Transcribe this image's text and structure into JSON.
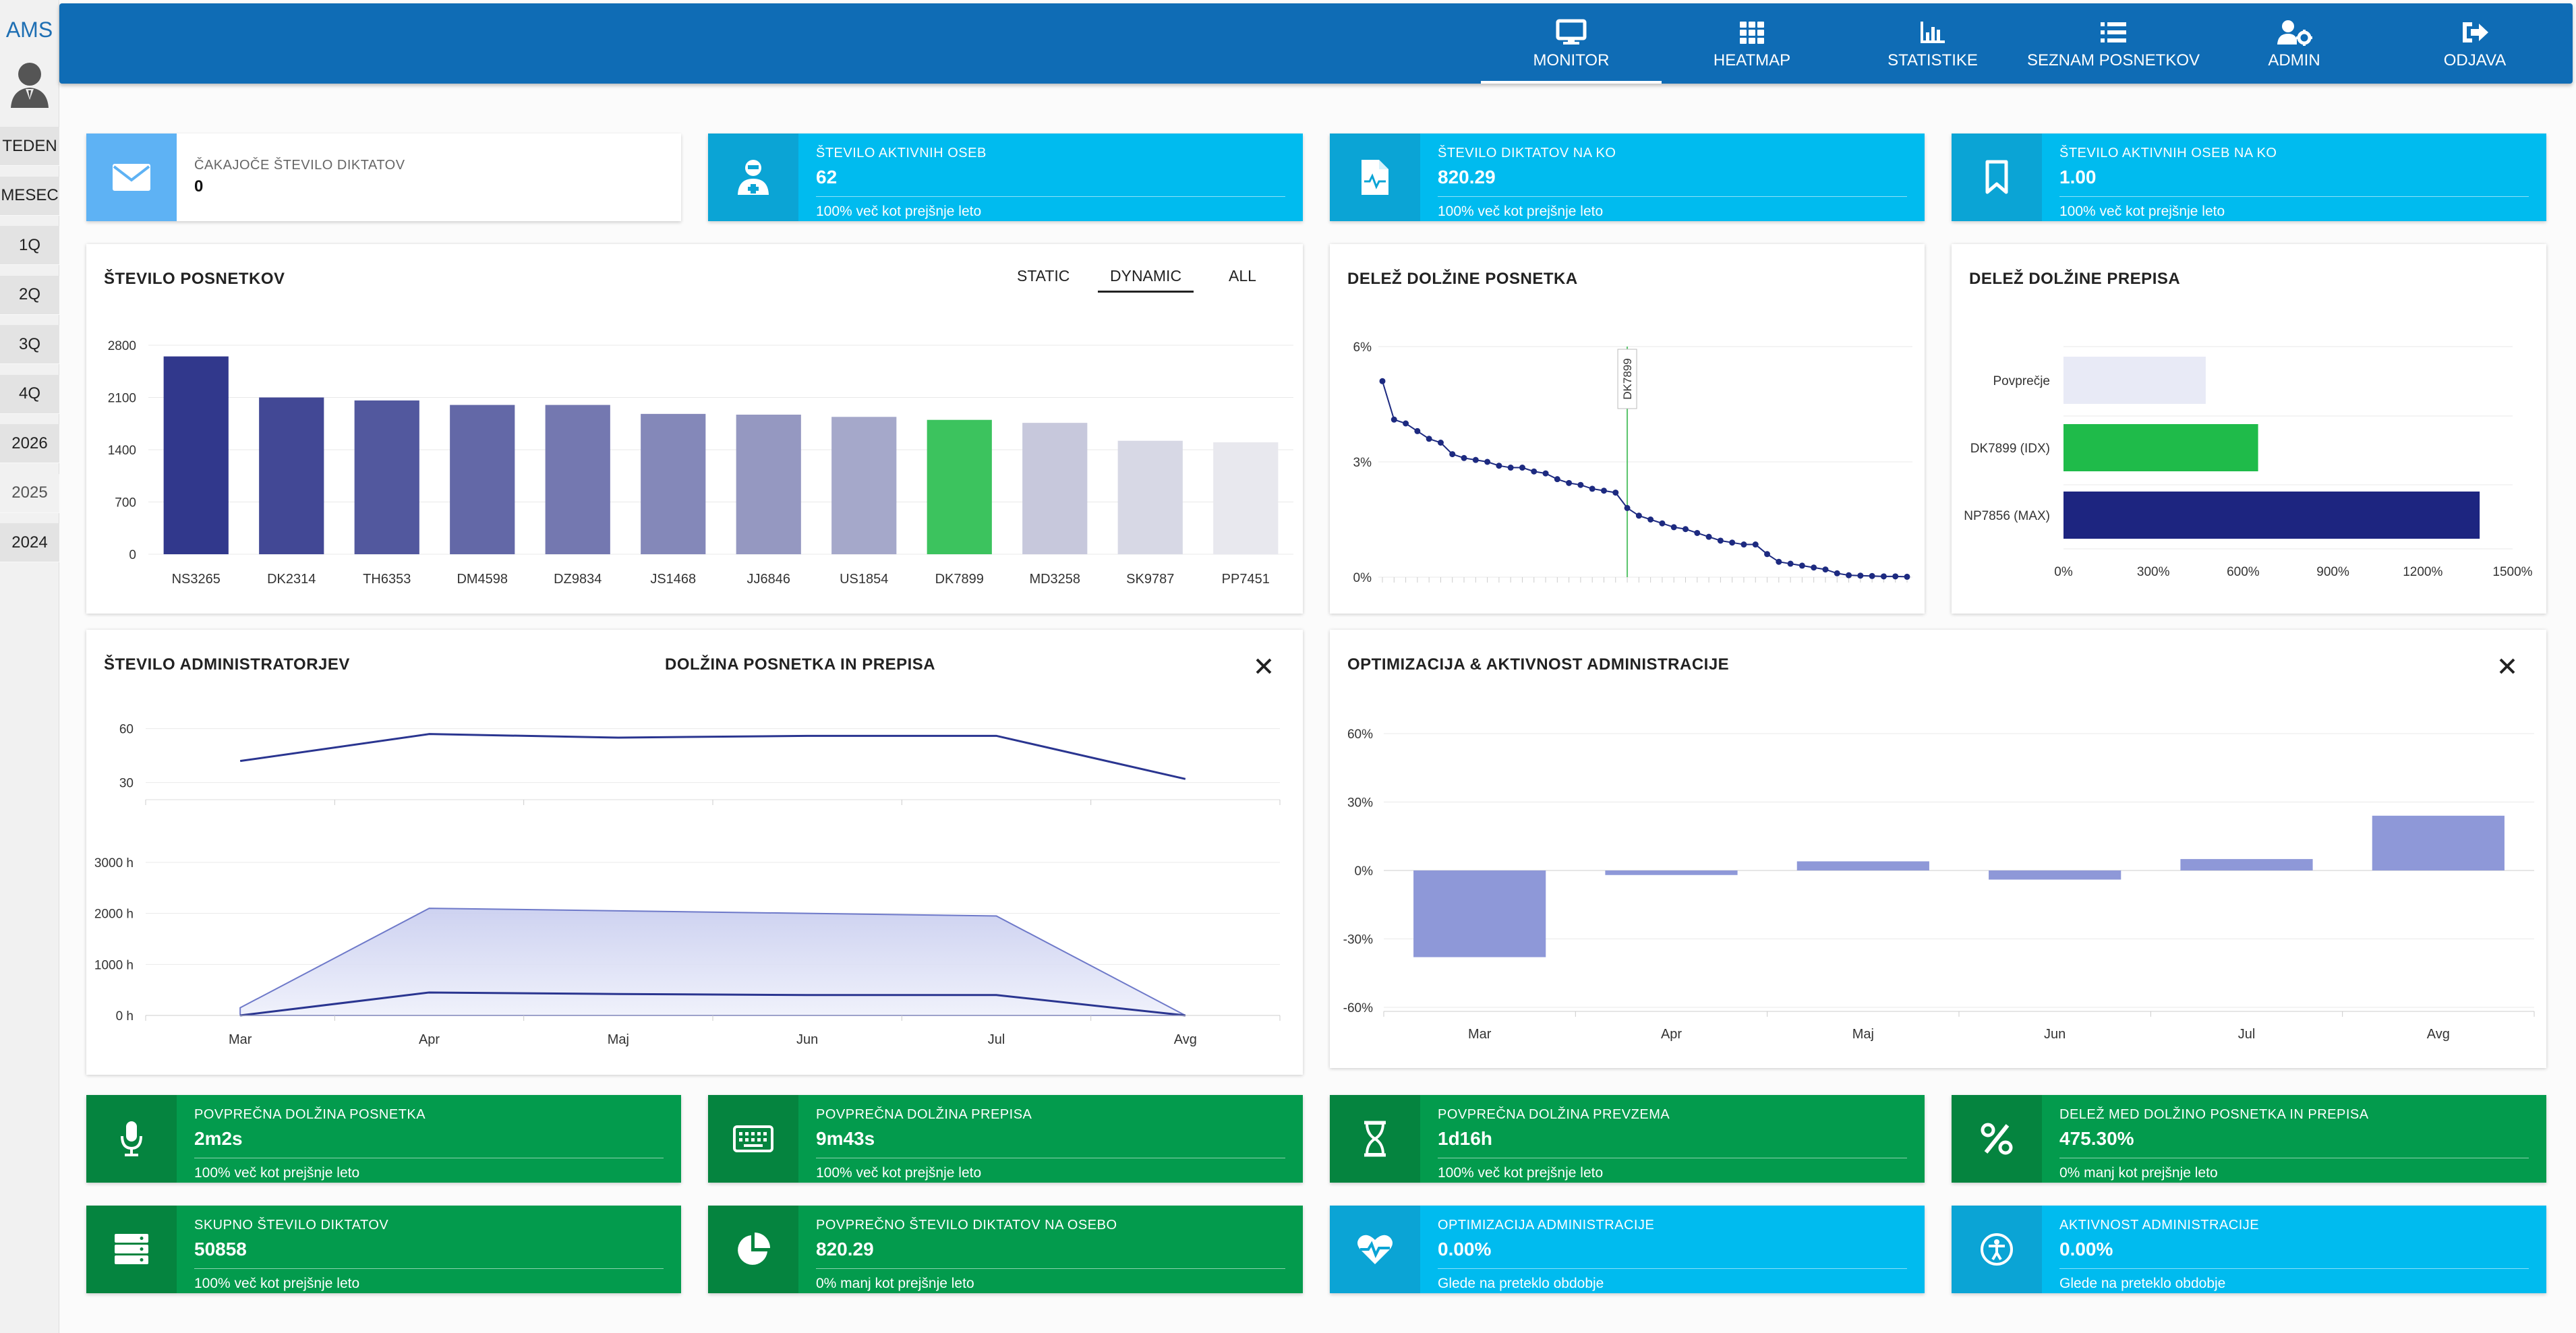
{
  "sidebar": {
    "brand": "AMS",
    "items": [
      "TEDEN",
      "MESEC",
      "1Q",
      "2Q",
      "3Q",
      "4Q",
      "2026",
      "2025",
      "2024"
    ],
    "active_item": "2025"
  },
  "nav": [
    {
      "label": "MONITOR",
      "icon": "monitor-icon"
    },
    {
      "label": "HEATMAP",
      "icon": "grid-icon"
    },
    {
      "label": "STATISTIKE",
      "icon": "bar-chart-icon"
    },
    {
      "label": "SEZNAM POSNETKOV",
      "icon": "list-icon"
    },
    {
      "label": "ADMIN",
      "icon": "users-cog-icon"
    },
    {
      "label": "ODJAVA",
      "icon": "logout-icon"
    }
  ],
  "top_cards": [
    {
      "title": "ČAKAJOČE ŠTEVILO DIKTATOV",
      "value": "0",
      "sub": "",
      "icon": "envelope-icon"
    },
    {
      "title": "ŠTEVILO AKTIVNIH OSEB",
      "value": "62",
      "sub": "100% več kot prejšnje leto",
      "icon": "user-md-icon"
    },
    {
      "title": "ŠTEVILO DIKTATOV NA KO",
      "value": "820.29",
      "sub": "100% več kot prejšnje leto",
      "icon": "file-medical-icon"
    },
    {
      "title": "ŠTEVILO AKTIVNIH OSEB NA KO",
      "value": "1.00",
      "sub": "100% več kot prejšnje leto",
      "icon": "bookmark-icon"
    }
  ],
  "bottom_cards_row1": [
    {
      "title": "POVPREČNA DOLŽINA POSNETKA",
      "value": "2m2s",
      "sub": "100% več kot prejšnje leto",
      "icon": "microphone-icon"
    },
    {
      "title": "POVPREČNA DOLŽINA PREPISA",
      "value": "9m43s",
      "sub": "100% več kot prejšnje leto",
      "icon": "keyboard-icon"
    },
    {
      "title": "POVPREČNA DOLŽINA PREVZEMA",
      "value": "1d16h",
      "sub": "100% več kot prejšnje leto",
      "icon": "hourglass-icon"
    },
    {
      "title": "DELEŽ MED DOLŽINO POSNETKA IN PREPISA",
      "value": "475.30%",
      "sub": "0% manj kot prejšnje leto",
      "icon": "percent-icon"
    }
  ],
  "bottom_cards_row2": [
    {
      "title": "SKUPNO ŠTEVILO DIKTATOV",
      "value": "50858",
      "sub": "100% več kot prejšnje leto",
      "icon": "server-icon"
    },
    {
      "title": "POVPREČNO ŠTEVILO DIKTATOV NA OSEBO",
      "value": "820.29",
      "sub": "0% manj kot prejšnje leto",
      "icon": "pie-chart-icon"
    },
    {
      "title": "OPTIMIZACIJA ADMINISTRACIJE",
      "value": "0.00%",
      "sub": "Glede na preteklo obdobje",
      "icon": "heartbeat-icon"
    },
    {
      "title": "AKTIVNOST ADMINISTRACIJE",
      "value": "0.00%",
      "sub": "Glede na preteklo obdobje",
      "icon": "accessibility-icon"
    }
  ],
  "panels": {
    "recordings": {
      "title": "ŠTEVILO POSNETKOV",
      "toggles": [
        "STATIC",
        "DYNAMIC",
        "ALL"
      ],
      "active_toggle": "DYNAMIC"
    },
    "recording_share": {
      "title": "DELEŽ DOLŽINE POSNETKA"
    },
    "transcript_share": {
      "title": "DELEŽ DOLŽINE PREPISA"
    },
    "admins": {
      "title": "ŠTEVILO ADMINISTRATORJEV",
      "subtitle": "DOLŽINA POSNETKA IN PREPISA"
    },
    "optimization": {
      "title": "OPTIMIZACIJA & AKTIVNOST ADMINISTRACIJE"
    }
  },
  "colors": {
    "primary": "#0f6cb5",
    "cyan": "#00bbef",
    "green": "#039b4d",
    "highlight": "#3cc35e",
    "navy": "#1d2a80",
    "lavender": "#8e98d8"
  },
  "chart_data": [
    {
      "id": "recordings",
      "type": "bar",
      "categories": [
        "NS3265",
        "DK2314",
        "TH6353",
        "DM4598",
        "DZ9834",
        "JS1468",
        "JJ6846",
        "US1854",
        "DK7899",
        "MD3258",
        "SK9787",
        "PP7451"
      ],
      "values": [
        2650,
        2100,
        2060,
        2000,
        2000,
        1880,
        1870,
        1840,
        1800,
        1760,
        1520,
        1500
      ],
      "highlight": "DK7899",
      "yticks": [
        "2800",
        "2100",
        "1400",
        "700",
        "0"
      ],
      "ylim": [
        0,
        2800
      ]
    },
    {
      "id": "recording_share",
      "type": "line",
      "values": [
        5.1,
        4.1,
        4.0,
        3.8,
        3.6,
        3.5,
        3.2,
        3.1,
        3.05,
        3.0,
        2.9,
        2.85,
        2.85,
        2.75,
        2.7,
        2.55,
        2.45,
        2.4,
        2.3,
        2.25,
        2.2,
        1.8,
        1.6,
        1.5,
        1.4,
        1.3,
        1.25,
        1.15,
        1.05,
        0.95,
        0.9,
        0.85,
        0.85,
        0.6,
        0.4,
        0.35,
        0.3,
        0.25,
        0.2,
        0.1,
        0.05,
        0.04,
        0.03,
        0.02,
        0.02,
        0.01
      ],
      "marker_index": 21,
      "marker_label": "DK7899",
      "yticks": [
        "6%",
        "3%",
        "0%"
      ],
      "ylim": [
        0,
        6
      ]
    },
    {
      "id": "transcript_share",
      "type": "bar",
      "orientation": "horizontal",
      "categories": [
        "Povprečje",
        "DK7899 (IDX)",
        "NP7856 (MAX)"
      ],
      "values": [
        475,
        650,
        1390
      ],
      "xticks": [
        "0%",
        "300%",
        "600%",
        "900%",
        "1200%",
        "1500%"
      ],
      "xlim": [
        0,
        1500
      ]
    },
    {
      "id": "admins",
      "type": "line",
      "categories": [
        "Mar",
        "Apr",
        "Maj",
        "Jun",
        "Jul",
        "Avg"
      ],
      "series": [
        {
          "values": [
            42,
            57,
            55,
            56,
            56,
            32
          ]
        }
      ],
      "yticks": [
        "60",
        "30"
      ],
      "ylim": [
        10,
        70
      ]
    },
    {
      "id": "lengths",
      "type": "area",
      "categories": [
        "Mar",
        "Apr",
        "Maj",
        "Jun",
        "Jul",
        "Avg"
      ],
      "series": [
        {
          "values": [
            150,
            2100,
            2050,
            2000,
            1950,
            0
          ]
        },
        {
          "values": [
            0,
            450,
            420,
            400,
            400,
            0
          ]
        }
      ],
      "yticks": [
        "3000 h",
        "2000 h",
        "1000 h",
        "0 h"
      ],
      "ylim": [
        0,
        3000
      ]
    },
    {
      "id": "optimization",
      "type": "bar",
      "categories": [
        "Mar",
        "Apr",
        "Maj",
        "Jun",
        "Jul",
        "Avg"
      ],
      "values": [
        -38,
        -2,
        4,
        -4,
        5,
        24
      ],
      "yticks": [
        "60%",
        "30%",
        "0%",
        "-30%",
        "-60%"
      ],
      "ylim": [
        -60,
        60
      ]
    }
  ]
}
